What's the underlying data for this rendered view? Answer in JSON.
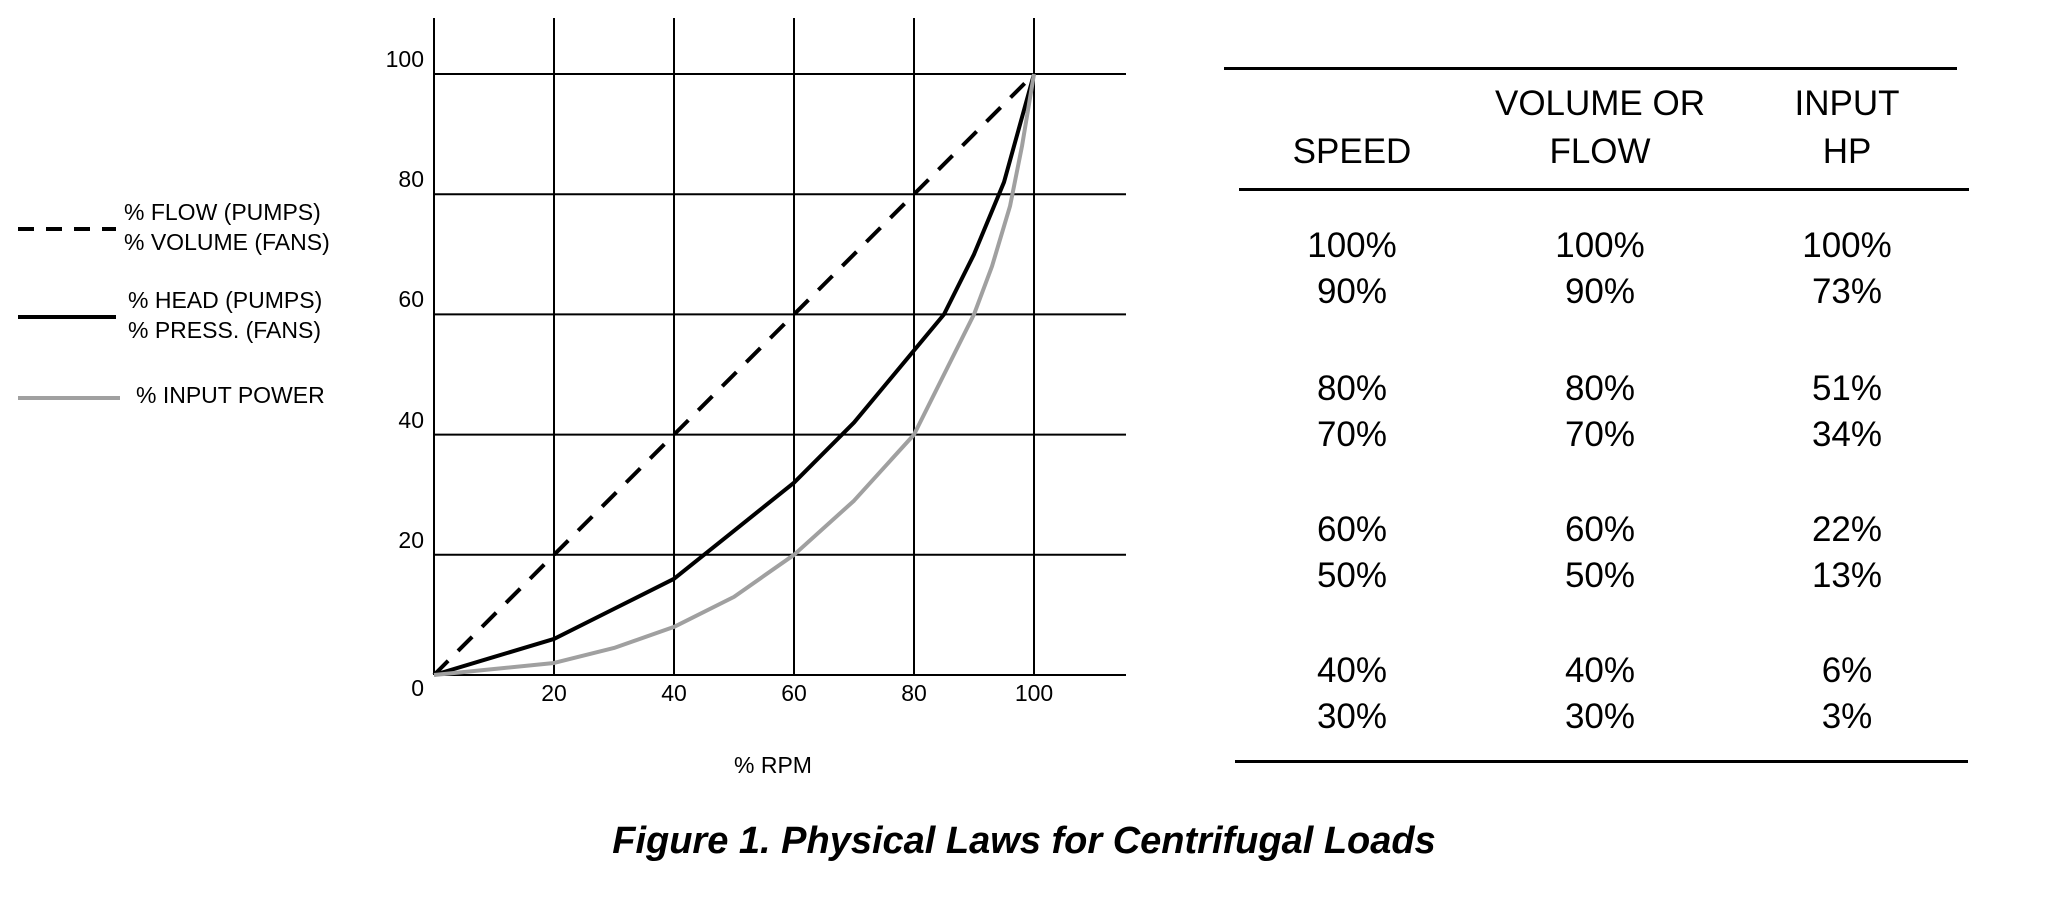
{
  "chart_data": {
    "type": "line",
    "title": "Figure 1.  Physical Laws for Centrifugal Loads",
    "xlabel": "% RPM",
    "ylabel": "",
    "xlim": [
      0,
      115
    ],
    "ylim": [
      0,
      110
    ],
    "xticks": [
      "20",
      "40",
      "60",
      "80",
      "100"
    ],
    "yticks": [
      "0",
      "20",
      "40",
      "60",
      "80",
      "100"
    ],
    "grid": true,
    "legend_position": "left",
    "series": [
      {
        "name": "% FLOW (PUMPS) / % VOLUME (FANS)",
        "label_lines": [
          "% FLOW (PUMPS)",
          "% VOLUME (FANS)"
        ],
        "style": "dashed",
        "color": "#000000",
        "x": [
          0,
          100
        ],
        "y": [
          0,
          100
        ]
      },
      {
        "name": "% HEAD (PUMPS) / % PRESS. (FANS)",
        "label_lines": [
          "% HEAD (PUMPS)",
          "% PRESS. (FANS)"
        ],
        "style": "solid",
        "color": "#000000",
        "x": [
          0,
          10,
          20,
          30,
          40,
          50,
          60,
          70,
          80,
          85,
          90,
          95,
          100
        ],
        "y": [
          0,
          3,
          6,
          11,
          16,
          24,
          32,
          42,
          54,
          60,
          70,
          82,
          100
        ]
      },
      {
        "name": "% INPUT POWER",
        "label_lines": [
          "% INPUT POWER"
        ],
        "style": "solid",
        "color": "#a0a0a0",
        "x": [
          0,
          10,
          20,
          30,
          40,
          50,
          60,
          70,
          80,
          85,
          90,
          93,
          96,
          98,
          100
        ],
        "y": [
          0,
          1,
          2,
          4.5,
          8,
          13,
          20,
          29,
          40,
          50,
          60,
          68,
          78,
          88,
          100
        ]
      }
    ]
  },
  "table": {
    "headers": [
      [
        "SPEED"
      ],
      [
        "VOLUME OR",
        "FLOW"
      ],
      [
        "INPUT",
        "HP"
      ]
    ],
    "groups": [
      [
        [
          "100%",
          "100%",
          "100%"
        ],
        [
          "90%",
          "90%",
          "73%"
        ]
      ],
      [
        [
          "80%",
          "80%",
          "51%"
        ],
        [
          "70%",
          "70%",
          "34%"
        ]
      ],
      [
        [
          "60%",
          "60%",
          "22%"
        ],
        [
          "50%",
          "50%",
          "13%"
        ]
      ],
      [
        [
          "40%",
          "40%",
          "6%"
        ],
        [
          "30%",
          "30%",
          "3%"
        ]
      ]
    ]
  },
  "caption": "Figure 1.  Physical Laws for Centrifugal Loads"
}
